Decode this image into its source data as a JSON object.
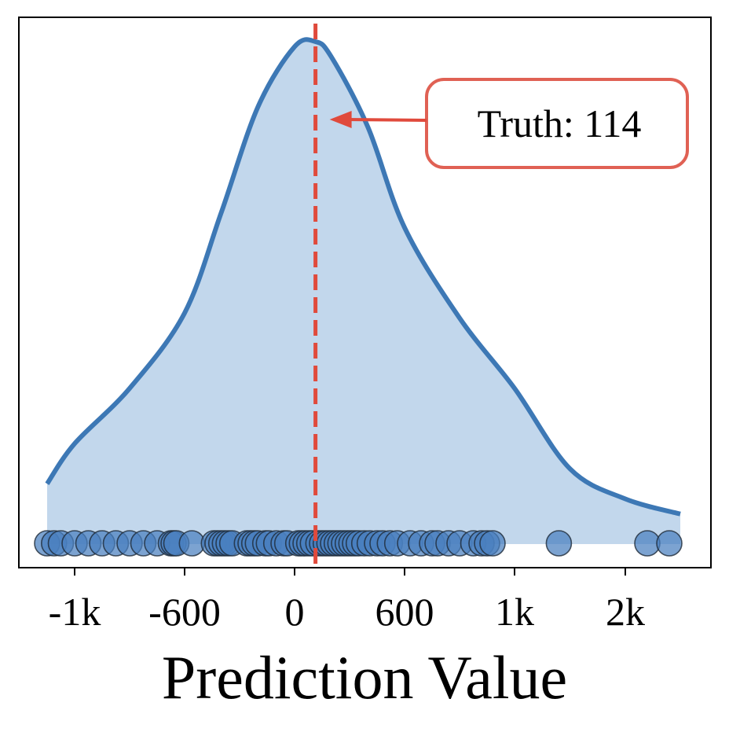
{
  "chart_data": {
    "type": "area",
    "title": "",
    "xlabel": "Prediction Value",
    "ylabel": "",
    "x_ticks": [
      {
        "value": -1000,
        "label": "-1k"
      },
      {
        "value": -600,
        "label": "-600"
      },
      {
        "value": 0,
        "label": "0"
      },
      {
        "value": 600,
        "label": "600"
      },
      {
        "value": 1000,
        "label": "1k"
      },
      {
        "value": 2000,
        "label": "2k"
      }
    ],
    "x_scale": "symmetric-log (linear near zero)",
    "grid": false,
    "truth": {
      "value": 114,
      "label": "Truth: 114"
    },
    "density_curve": {
      "x": [
        -1200,
        -1000,
        -800,
        -600,
        -400,
        -200,
        0,
        114,
        200,
        400,
        600,
        800,
        1000,
        1500,
        2000,
        2500
      ],
      "y": [
        0.12,
        0.2,
        0.31,
        0.46,
        0.66,
        0.87,
        0.99,
        1.0,
        0.97,
        0.83,
        0.63,
        0.45,
        0.31,
        0.15,
        0.09,
        0.06
      ]
    },
    "predictions": [
      -1200,
      -1150,
      -1100,
      -1000,
      -950,
      -900,
      -850,
      -800,
      -750,
      -700,
      -650,
      -640,
      -630,
      -560,
      -440,
      -420,
      -400,
      -380,
      -360,
      -340,
      -260,
      -240,
      -220,
      -200,
      -160,
      -140,
      -100,
      -60,
      -40,
      20,
      40,
      60,
      80,
      100,
      130,
      150,
      170,
      190,
      210,
      230,
      250,
      270,
      290,
      310,
      330,
      350,
      380,
      410,
      450,
      480,
      520,
      560,
      620,
      660,
      700,
      720,
      760,
      800,
      850,
      880,
      900,
      920,
      1400,
      2200,
      2400
    ],
    "colors": {
      "curve": "#3d78b5",
      "fill": "#c2d7ec",
      "points": "#4a7fbf",
      "truth": "#e04a3c",
      "annotation_border": "#e06154"
    }
  }
}
